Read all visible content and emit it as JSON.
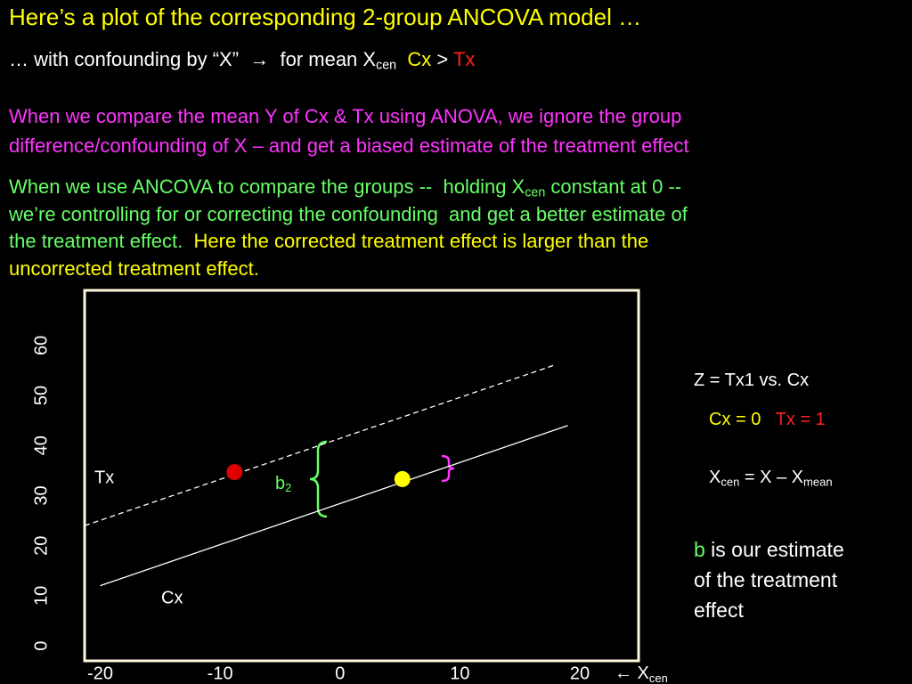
{
  "title": "Here’s a plot of the corresponding 2-group ANCOVA model …",
  "subtitle": {
    "text": "… with confounding by “X”  →  for mean X",
    "sub": "cen",
    "cx": "Cx",
    "gt": ">",
    "tx": "Tx"
  },
  "paragraph1": [
    "When we compare the mean Y of Cx & Tx using ANOVA, we ignore the group",
    "difference/confounding of X – and get a biased estimate of the treatment effect"
  ],
  "paragraph2": {
    "line1": [
      "When we use ANCOVA to compare the groups --  holding X",
      "cen",
      " constant at 0 --"
    ],
    "line2": "we’re controlling for or correcting the confounding  and get a better estimate of",
    "line3": [
      "the treatment effect.",
      "Here the corrected treatment effect is larger than the"
    ],
    "line4": "uncorrected treatment effect."
  },
  "notes": {
    "z": "Z = Tx1 vs. Cx",
    "cx": "Cx = 0",
    "tx": "Tx = 1",
    "xcen": [
      "X",
      "cen",
      " = X – X",
      "mean"
    ],
    "b": "b",
    "b_text": [
      " is our estimate",
      "of the treatment",
      "effect"
    ]
  },
  "chart_data": {
    "type": "line",
    "xlim": [
      -21.3,
      24.9
    ],
    "ylim": [
      -3,
      71
    ],
    "xticks": [
      -20,
      -10,
      0,
      10,
      20
    ],
    "yticks": [
      0,
      10,
      20,
      30,
      40,
      50,
      60
    ],
    "x_label": [
      "← X",
      "cen"
    ],
    "series": [
      {
        "name": "Tx",
        "color": "#ffffff",
        "dashed": true,
        "x": [
          -21.3,
          17.8
        ],
        "values": [
          24,
          56
        ]
      },
      {
        "name": "Cx",
        "color": "#ffffff",
        "dashed": false,
        "x": [
          -20,
          19
        ],
        "values": [
          12,
          44
        ]
      }
    ],
    "points": {
      "x": [
        -8.8,
        5.2
      ],
      "values": [
        34.7,
        33.3
      ],
      "colors": [
        "#e00000",
        "#ffff00"
      ]
    },
    "annotation": [
      "b",
      "2"
    ]
  }
}
